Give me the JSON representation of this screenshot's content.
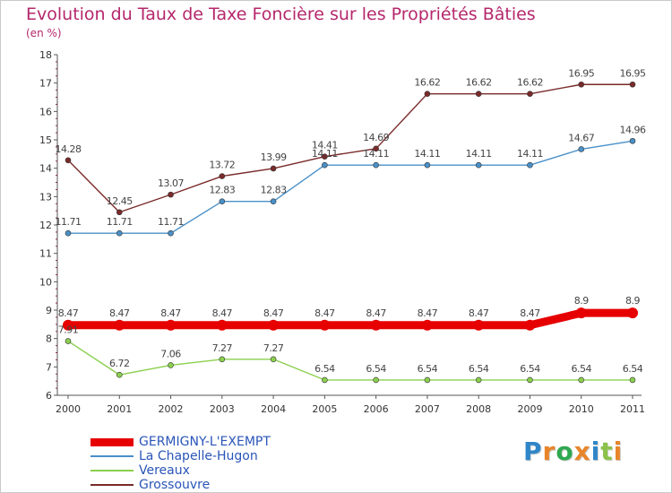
{
  "header": {
    "title": "Evolution du Taux de Taxe Foncière sur les Propriétés Bâties",
    "unit": "(en %)"
  },
  "logo": {
    "text": "Proxiti"
  },
  "chart_data": {
    "type": "line",
    "title": "Evolution du Taux de Taxe Foncière sur les Propriétés Bâties",
    "ylabel": "(en %)",
    "x": [
      "2000",
      "2001",
      "2002",
      "2003",
      "2004",
      "2005",
      "2006",
      "2007",
      "2008",
      "2009",
      "2010",
      "2011"
    ],
    "ylim": [
      6,
      18
    ],
    "yticks": [
      "6",
      "7",
      "8",
      "9",
      "10",
      "11",
      "12",
      "13",
      "14",
      "15",
      "16",
      "17",
      "18"
    ],
    "grid": false,
    "legend_position": "bottom-left",
    "series": [
      {
        "name": "GERMIGNY-L'EXEMPT",
        "color": "#e60000",
        "values": [
          8.47,
          8.47,
          8.47,
          8.47,
          8.47,
          8.47,
          8.47,
          8.47,
          8.47,
          8.47,
          8.9,
          8.9
        ],
        "labels": [
          "8.47",
          "8.47",
          "8.47",
          "8.47",
          "8.47",
          "8.47",
          "8.47",
          "8.47",
          "8.47",
          "8.47",
          "8.9",
          "8.9"
        ]
      },
      {
        "name": "La Chapelle-Hugon",
        "color": "#4a90c8",
        "values": [
          11.71,
          11.71,
          11.71,
          12.83,
          12.83,
          14.11,
          14.11,
          14.11,
          14.11,
          14.11,
          14.67,
          14.96
        ],
        "labels": [
          "11.71",
          "11.71",
          "11.71",
          "12.83",
          "12.83",
          "14.11",
          "14.11",
          "14.11",
          "14.11",
          "14.11",
          "14.67",
          "14.96"
        ]
      },
      {
        "name": "Vereaux",
        "color": "#8bd04e",
        "values": [
          7.91,
          6.72,
          7.06,
          7.27,
          7.27,
          6.54,
          6.54,
          6.54,
          6.54,
          6.54,
          6.54,
          6.54
        ],
        "labels": [
          "7.91",
          "6.72",
          "7.06",
          "7.27",
          "7.27",
          "6.54",
          "6.54",
          "6.54",
          "6.54",
          "6.54",
          "6.54",
          "6.54"
        ]
      },
      {
        "name": "Grossouvre",
        "color": "#7a2a2a",
        "values": [
          14.28,
          12.45,
          13.07,
          13.72,
          13.99,
          14.41,
          14.69,
          16.62,
          16.62,
          16.62,
          16.95,
          16.95
        ],
        "labels": [
          "14.28",
          "12.45",
          "13.07",
          "13.72",
          "13.99",
          "14.41",
          "14.69",
          "16.62",
          "16.62",
          "16.62",
          "16.95",
          "16.95"
        ]
      }
    ]
  }
}
